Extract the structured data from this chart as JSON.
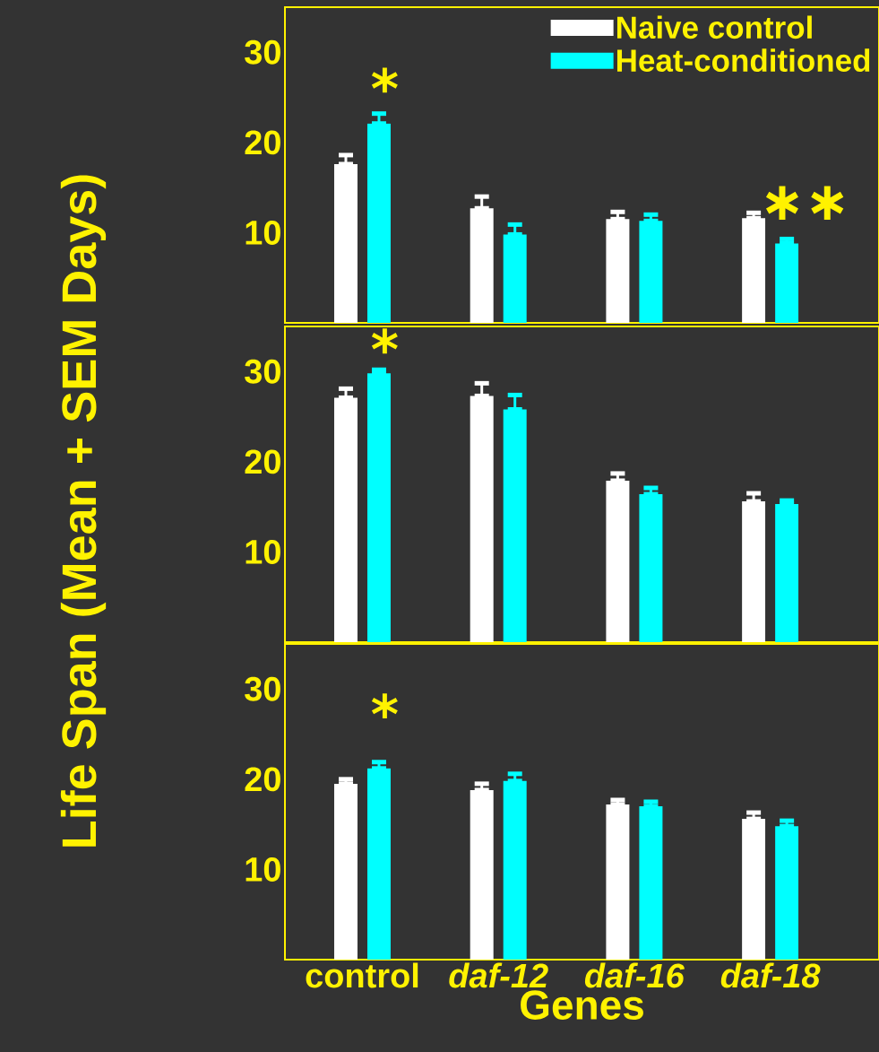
{
  "chart_data": [
    {
      "type": "bar",
      "categories": [
        null,
        null,
        null,
        null
      ],
      "ylim": [
        0,
        35
      ],
      "yticks": [
        10,
        20,
        30
      ],
      "tick_labels": "y",
      "legend": "top right",
      "series": [
        {
          "name": "Naive control",
          "color": "#ffffff",
          "values": [
            17.6,
            12.7,
            11.5,
            11.6
          ],
          "errors": [
            [
              17.6,
              18.6
            ],
            [
              12.7,
              14.0
            ],
            [
              11.5,
              12.3
            ],
            [
              11.6,
              12.2
            ]
          ]
        },
        {
          "name": "Heat-conditioned",
          "color": "#00ffff",
          "values": [
            22.1,
            9.8,
            11.3,
            8.8
          ],
          "errors": [
            [
              22.1,
              23.2
            ],
            [
              9.8,
              10.9
            ],
            [
              11.3,
              12.0
            ],
            [
              8.8,
              9.3
            ]
          ]
        }
      ],
      "annotations": [
        "*",
        "∗∗"
      ]
    },
    {
      "type": "bar",
      "categories": [
        null,
        null,
        null,
        null
      ],
      "ylim": [
        0,
        35
      ],
      "yticks": [
        10,
        20,
        30
      ],
      "tick_labels": "y",
      "ylabel": "Life Span (Mean + SEM Days)",
      "series": [
        {
          "color": "#ffffff",
          "values": [
            27.1,
            27.3,
            17.9,
            15.6
          ],
          "errors": [
            [
              27.1,
              28.1
            ],
            [
              27.3,
              28.7
            ],
            [
              17.9,
              18.7
            ],
            [
              15.6,
              16.5
            ]
          ]
        },
        {
          "color": "#00ffff",
          "values": [
            29.8,
            25.8,
            16.4,
            15.3
          ],
          "errors": [
            [
              29.8,
              30.2
            ],
            [
              25.8,
              27.4
            ],
            [
              16.4,
              17.1
            ],
            [
              15.3,
              15.7
            ]
          ]
        }
      ],
      "annotations": [
        "*"
      ]
    },
    {
      "type": "bar",
      "categories": [
        "control",
        "*daf-12*",
        "*daf-16*",
        "*daf-18*"
      ],
      "ylim": [
        0,
        35
      ],
      "yticks": [
        10,
        20,
        30
      ],
      "xlabel": "Genes",
      "series": [
        {
          "color": "#ffffff",
          "values": [
            19.5,
            18.8,
            17.2,
            15.6
          ],
          "errors": [
            [
              19.5,
              20.0
            ],
            [
              18.8,
              19.5
            ],
            [
              17.2,
              17.7
            ],
            [
              15.6,
              16.3
            ]
          ]
        },
        {
          "color": "#00ffff",
          "values": [
            21.2,
            19.8,
            17.0,
            14.8
          ],
          "errors": [
            [
              21.2,
              21.9
            ],
            [
              19.8,
              20.6
            ],
            [
              17.0,
              17.5
            ],
            [
              14.8,
              15.4
            ]
          ]
        }
      ],
      "annotations": [
        "*"
      ]
    }
  ]
}
